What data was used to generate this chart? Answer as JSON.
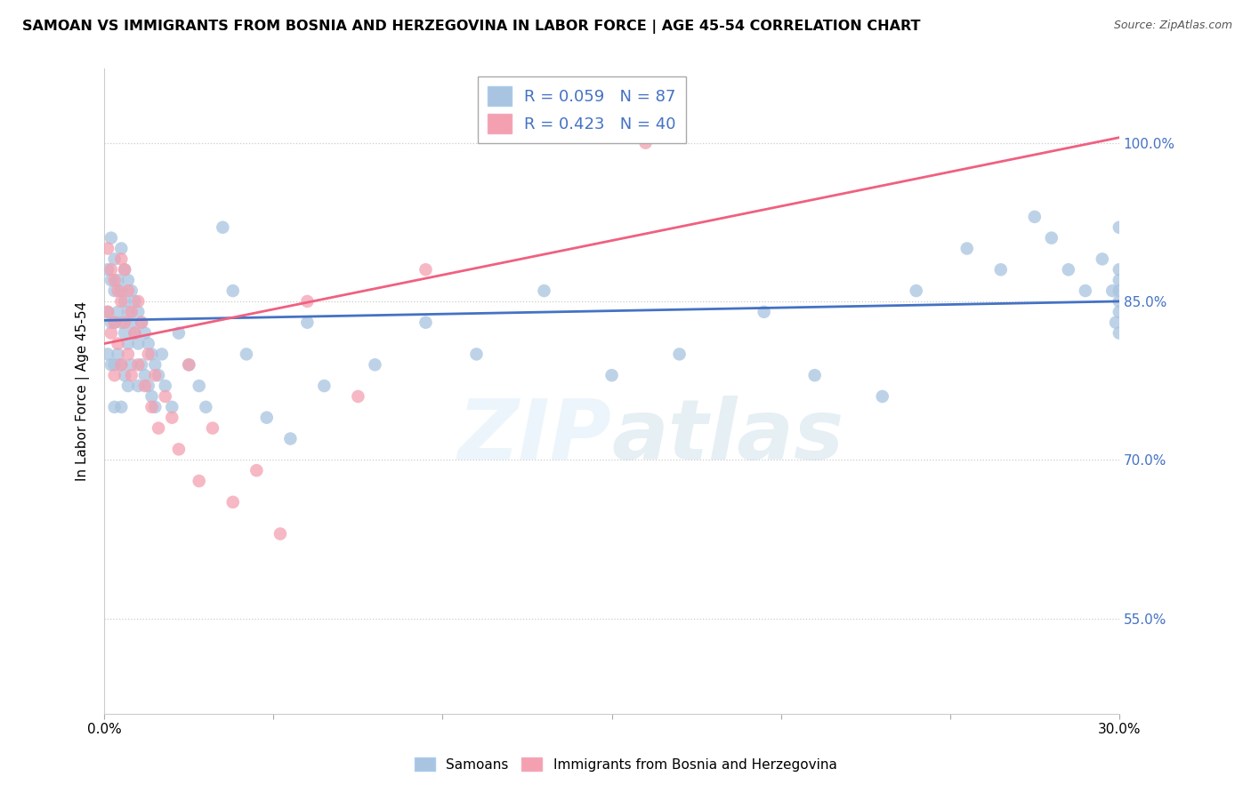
{
  "title": "SAMOAN VS IMMIGRANTS FROM BOSNIA AND HERZEGOVINA IN LABOR FORCE | AGE 45-54 CORRELATION CHART",
  "source": "Source: ZipAtlas.com",
  "ylabel": "In Labor Force | Age 45-54",
  "watermark": "ZIPatlas",
  "blue_R": 0.059,
  "blue_N": 87,
  "pink_R": 0.423,
  "pink_N": 40,
  "blue_color": "#a8c4e0",
  "pink_color": "#f4a0b0",
  "blue_line_color": "#4472c4",
  "pink_line_color": "#f06080",
  "xmin": 0.0,
  "xmax": 0.3,
  "ymin": 0.46,
  "ymax": 1.07,
  "yticks": [
    0.55,
    0.7,
    0.85,
    1.0
  ],
  "ytick_labels": [
    "55.0%",
    "70.0%",
    "85.0%",
    "100.0%"
  ],
  "xticks": [
    0.0,
    0.05,
    0.1,
    0.15,
    0.2,
    0.25,
    0.3
  ],
  "xtick_labels": [
    "0.0%",
    "",
    "",
    "",
    "",
    "",
    "30.0%"
  ],
  "legend_label_1": "Samoans",
  "legend_label_2": "Immigrants from Bosnia and Herzegovina",
  "blue_line_x0": 0.0,
  "blue_line_x1": 0.3,
  "blue_line_y0": 0.832,
  "blue_line_y1": 0.85,
  "pink_line_x0": 0.0,
  "pink_line_x1": 0.3,
  "pink_line_y0": 0.81,
  "pink_line_y1": 1.005,
  "blue_x": [
    0.001,
    0.001,
    0.001,
    0.002,
    0.002,
    0.002,
    0.002,
    0.003,
    0.003,
    0.003,
    0.003,
    0.003,
    0.004,
    0.004,
    0.004,
    0.005,
    0.005,
    0.005,
    0.005,
    0.005,
    0.006,
    0.006,
    0.006,
    0.006,
    0.007,
    0.007,
    0.007,
    0.007,
    0.008,
    0.008,
    0.008,
    0.009,
    0.009,
    0.01,
    0.01,
    0.01,
    0.011,
    0.011,
    0.012,
    0.012,
    0.013,
    0.013,
    0.014,
    0.014,
    0.015,
    0.015,
    0.016,
    0.017,
    0.018,
    0.02,
    0.022,
    0.025,
    0.028,
    0.03,
    0.035,
    0.038,
    0.042,
    0.048,
    0.055,
    0.06,
    0.065,
    0.08,
    0.095,
    0.11,
    0.13,
    0.15,
    0.17,
    0.195,
    0.21,
    0.23,
    0.24,
    0.255,
    0.265,
    0.275,
    0.28,
    0.285,
    0.29,
    0.295,
    0.298,
    0.299,
    0.3,
    0.3,
    0.3,
    0.3,
    0.3,
    0.3,
    0.3
  ],
  "blue_y": [
    0.88,
    0.84,
    0.8,
    0.91,
    0.87,
    0.83,
    0.79,
    0.89,
    0.86,
    0.83,
    0.79,
    0.75,
    0.87,
    0.84,
    0.8,
    0.9,
    0.86,
    0.83,
    0.79,
    0.75,
    0.88,
    0.85,
    0.82,
    0.78,
    0.87,
    0.84,
    0.81,
    0.77,
    0.86,
    0.83,
    0.79,
    0.85,
    0.82,
    0.84,
    0.81,
    0.77,
    0.83,
    0.79,
    0.82,
    0.78,
    0.81,
    0.77,
    0.8,
    0.76,
    0.79,
    0.75,
    0.78,
    0.8,
    0.77,
    0.75,
    0.82,
    0.79,
    0.77,
    0.75,
    0.92,
    0.86,
    0.8,
    0.74,
    0.72,
    0.83,
    0.77,
    0.79,
    0.83,
    0.8,
    0.86,
    0.78,
    0.8,
    0.84,
    0.78,
    0.76,
    0.86,
    0.9,
    0.88,
    0.93,
    0.91,
    0.88,
    0.86,
    0.89,
    0.86,
    0.83,
    0.92,
    0.88,
    0.86,
    0.84,
    0.82,
    0.87,
    0.85
  ],
  "pink_x": [
    0.001,
    0.001,
    0.002,
    0.002,
    0.003,
    0.003,
    0.003,
    0.004,
    0.004,
    0.005,
    0.005,
    0.005,
    0.006,
    0.006,
    0.007,
    0.007,
    0.008,
    0.008,
    0.009,
    0.01,
    0.01,
    0.011,
    0.012,
    0.013,
    0.014,
    0.015,
    0.016,
    0.018,
    0.02,
    0.022,
    0.025,
    0.028,
    0.032,
    0.038,
    0.045,
    0.052,
    0.06,
    0.075,
    0.095,
    0.16
  ],
  "pink_y": [
    0.9,
    0.84,
    0.88,
    0.82,
    0.87,
    0.83,
    0.78,
    0.86,
    0.81,
    0.89,
    0.85,
    0.79,
    0.88,
    0.83,
    0.86,
    0.8,
    0.84,
    0.78,
    0.82,
    0.85,
    0.79,
    0.83,
    0.77,
    0.8,
    0.75,
    0.78,
    0.73,
    0.76,
    0.74,
    0.71,
    0.79,
    0.68,
    0.73,
    0.66,
    0.69,
    0.63,
    0.85,
    0.76,
    0.88,
    1.0
  ]
}
